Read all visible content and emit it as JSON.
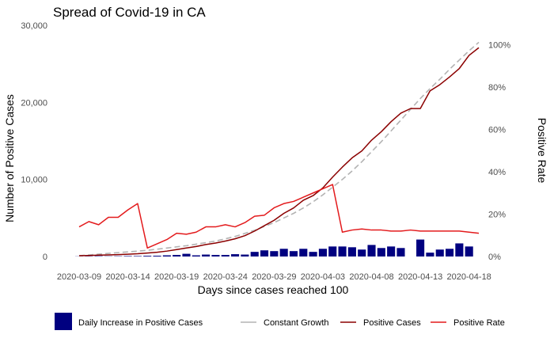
{
  "chart_data": {
    "type": "bar+line",
    "title": "Spread of Covid-19 in CA",
    "xlabel": "Days since cases reached 100",
    "ylabel_left": "Number of Positive Cases",
    "ylabel_right": "Positive Rate",
    "ylim_left": [
      0,
      30000
    ],
    "ylim_right": [
      0,
      1.0
    ],
    "left_ticks": [
      0,
      10000,
      20000,
      30000
    ],
    "left_tick_labels": [
      "0",
      "10,000",
      "20,000",
      "30,000"
    ],
    "right_ticks": [
      0,
      0.2,
      0.4,
      0.6,
      0.8,
      1.0
    ],
    "right_tick_labels": [
      "0%",
      "20%",
      "40%",
      "60%",
      "80%",
      "100%"
    ],
    "x_tick_labels": [
      "2020-03-09",
      "2020-03-14",
      "2020-03-19",
      "2020-03-24",
      "2020-03-29",
      "2020-04-03",
      "2020-04-08",
      "2020-04-13",
      "2020-04-18"
    ],
    "dates": [
      "2020-03-09",
      "2020-03-10",
      "2020-03-11",
      "2020-03-12",
      "2020-03-13",
      "2020-03-14",
      "2020-03-15",
      "2020-03-16",
      "2020-03-17",
      "2020-03-18",
      "2020-03-19",
      "2020-03-20",
      "2020-03-21",
      "2020-03-22",
      "2020-03-23",
      "2020-03-24",
      "2020-03-25",
      "2020-03-26",
      "2020-03-27",
      "2020-03-28",
      "2020-03-29",
      "2020-03-30",
      "2020-03-31",
      "2020-04-01",
      "2020-04-02",
      "2020-04-03",
      "2020-04-04",
      "2020-04-05",
      "2020-04-06",
      "2020-04-07",
      "2020-04-08",
      "2020-04-09",
      "2020-04-10",
      "2020-04-11",
      "2020-04-12",
      "2020-04-13",
      "2020-04-14",
      "2020-04-15",
      "2020-04-16",
      "2020-04-17",
      "2020-04-18",
      "2020-04-19"
    ],
    "series": [
      {
        "name": "Daily Increase in Positive Cases",
        "kind": "bar",
        "color": "#000080",
        "values": [
          20,
          30,
          50,
          30,
          40,
          60,
          60,
          90,
          100,
          150,
          200,
          350,
          150,
          250,
          200,
          200,
          300,
          250,
          600,
          800,
          700,
          1000,
          700,
          1000,
          600,
          1000,
          1300,
          1300,
          1200,
          900,
          1500,
          1100,
          1300,
          1100,
          0,
          2200,
          500,
          900,
          1000,
          1700,
          1300,
          0
        ]
      },
      {
        "name": "Positive Cases",
        "kind": "line",
        "axis": "left",
        "color": "#8b0000",
        "values": [
          100,
          130,
          180,
          210,
          250,
          300,
          360,
          450,
          550,
          700,
          900,
          1100,
          1300,
          1550,
          1750,
          2000,
          2300,
          2700,
          3300,
          4000,
          4700,
          5600,
          6300,
          7300,
          7900,
          8900,
          10300,
          11600,
          12800,
          13700,
          15100,
          16200,
          17500,
          18600,
          19200,
          19200,
          21500,
          22300,
          23300,
          24400,
          26100,
          27100
        ]
      },
      {
        "name": "Constant Growth",
        "kind": "line",
        "axis": "left",
        "color": "#b3b3b3",
        "dashed": true,
        "values": [
          100,
          200,
          300,
          400,
          500,
          600,
          700,
          800,
          950,
          1100,
          1250,
          1400,
          1600,
          1800,
          2000,
          2300,
          2600,
          3000,
          3400,
          3900,
          4400,
          5000,
          5600,
          6300,
          7100,
          8000,
          9000,
          10000,
          11100,
          12300,
          13600,
          14900,
          16300,
          17700,
          19100,
          20500,
          21800,
          23000,
          24300,
          25500,
          26700,
          27800
        ]
      },
      {
        "name": "Positive Rate",
        "kind": "line",
        "axis": "right",
        "color": "#e31a1c",
        "values": [
          0.14,
          0.165,
          0.15,
          0.185,
          0.185,
          0.22,
          0.25,
          0.04,
          0.06,
          0.08,
          0.11,
          0.105,
          0.115,
          0.14,
          0.14,
          0.15,
          0.14,
          0.16,
          0.19,
          0.195,
          0.23,
          0.25,
          0.26,
          0.28,
          0.3,
          0.32,
          0.34,
          0.115,
          0.125,
          0.13,
          0.125,
          0.125,
          0.12,
          0.12,
          0.125,
          0.12,
          0.12,
          0.12,
          0.12,
          0.12,
          0.115,
          0.11
        ]
      }
    ],
    "legend": {
      "placement": "bottom",
      "items": [
        {
          "label": "Daily Increase in Positive Cases",
          "kind": "bar",
          "color": "#000080"
        },
        {
          "label": "Constant Growth",
          "kind": "line",
          "color": "#b3b3b3"
        },
        {
          "label": "Positive Cases",
          "kind": "line",
          "color": "#8b0000"
        },
        {
          "label": "Positive Rate",
          "kind": "line",
          "color": "#e31a1c"
        }
      ]
    },
    "grid": false
  }
}
